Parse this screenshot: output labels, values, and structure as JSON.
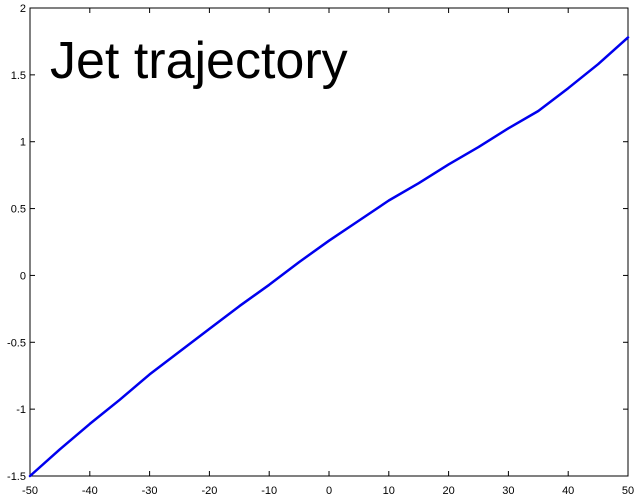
{
  "chart_data": {
    "type": "line",
    "title": "Jet trajectory",
    "xlabel": "",
    "ylabel": "",
    "xlim": [
      -50,
      50
    ],
    "ylim": [
      -1.5,
      2
    ],
    "xticks": [
      -50,
      -40,
      -30,
      -20,
      -10,
      0,
      10,
      20,
      30,
      40,
      50
    ],
    "yticks": [
      -1.5,
      -1,
      -0.5,
      0,
      0.5,
      1,
      1.5,
      2
    ],
    "xtick_labels": [
      "-50",
      "-40",
      "-30",
      "-20",
      "-10",
      "0",
      "10",
      "20",
      "30",
      "40",
      "50"
    ],
    "ytick_labels": [
      "-1.5",
      "-1",
      "-0.5",
      "0",
      "0.5",
      "1",
      "1.5",
      "2"
    ],
    "grid": false,
    "series": [
      {
        "color": "#0000ee",
        "x": [
          -50,
          -45,
          -40,
          -35,
          -30,
          -25,
          -20,
          -15,
          -10,
          -5,
          0,
          5,
          10,
          15,
          20,
          25,
          30,
          35,
          40,
          45,
          50
        ],
        "y": [
          -1.5,
          -1.3,
          -1.11,
          -0.93,
          -0.74,
          -0.57,
          -0.4,
          -0.23,
          -0.07,
          0.1,
          0.26,
          0.41,
          0.56,
          0.69,
          0.83,
          0.96,
          1.1,
          1.23,
          1.4,
          1.58,
          1.78
        ]
      }
    ]
  }
}
